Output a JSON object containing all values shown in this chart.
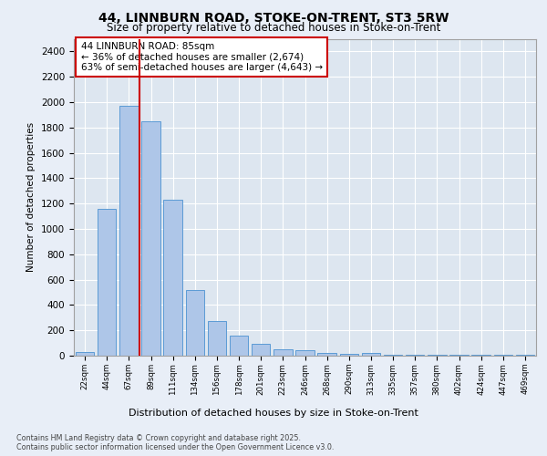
{
  "title1": "44, LINNBURN ROAD, STOKE-ON-TRENT, ST3 5RW",
  "title2": "Size of property relative to detached houses in Stoke-on-Trent",
  "xlabel": "Distribution of detached houses by size in Stoke-on-Trent",
  "ylabel": "Number of detached properties",
  "categories": [
    "22sqm",
    "44sqm",
    "67sqm",
    "89sqm",
    "111sqm",
    "134sqm",
    "156sqm",
    "178sqm",
    "201sqm",
    "223sqm",
    "246sqm",
    "268sqm",
    "290sqm",
    "313sqm",
    "335sqm",
    "357sqm",
    "380sqm",
    "402sqm",
    "424sqm",
    "447sqm",
    "469sqm"
  ],
  "values": [
    30,
    1160,
    1970,
    1850,
    1230,
    515,
    275,
    155,
    90,
    50,
    40,
    25,
    15,
    20,
    5,
    5,
    5,
    5,
    5,
    5,
    5
  ],
  "bar_color": "#aec6e8",
  "bar_edge_color": "#5b9bd5",
  "vline_x": 2.5,
  "vline_color": "#cc0000",
  "annotation_text": "44 LINNBURN ROAD: 85sqm\n← 36% of detached houses are smaller (2,674)\n63% of semi-detached houses are larger (4,643) →",
  "annotation_box_color": "#ffffff",
  "annotation_box_edge": "#cc0000",
  "bg_color": "#e8eef7",
  "plot_bg": "#dde6f0",
  "footer1": "Contains HM Land Registry data © Crown copyright and database right 2025.",
  "footer2": "Contains public sector information licensed under the Open Government Licence v3.0.",
  "ylim": [
    0,
    2500
  ],
  "yticks": [
    0,
    200,
    400,
    600,
    800,
    1000,
    1200,
    1400,
    1600,
    1800,
    2000,
    2200,
    2400
  ]
}
